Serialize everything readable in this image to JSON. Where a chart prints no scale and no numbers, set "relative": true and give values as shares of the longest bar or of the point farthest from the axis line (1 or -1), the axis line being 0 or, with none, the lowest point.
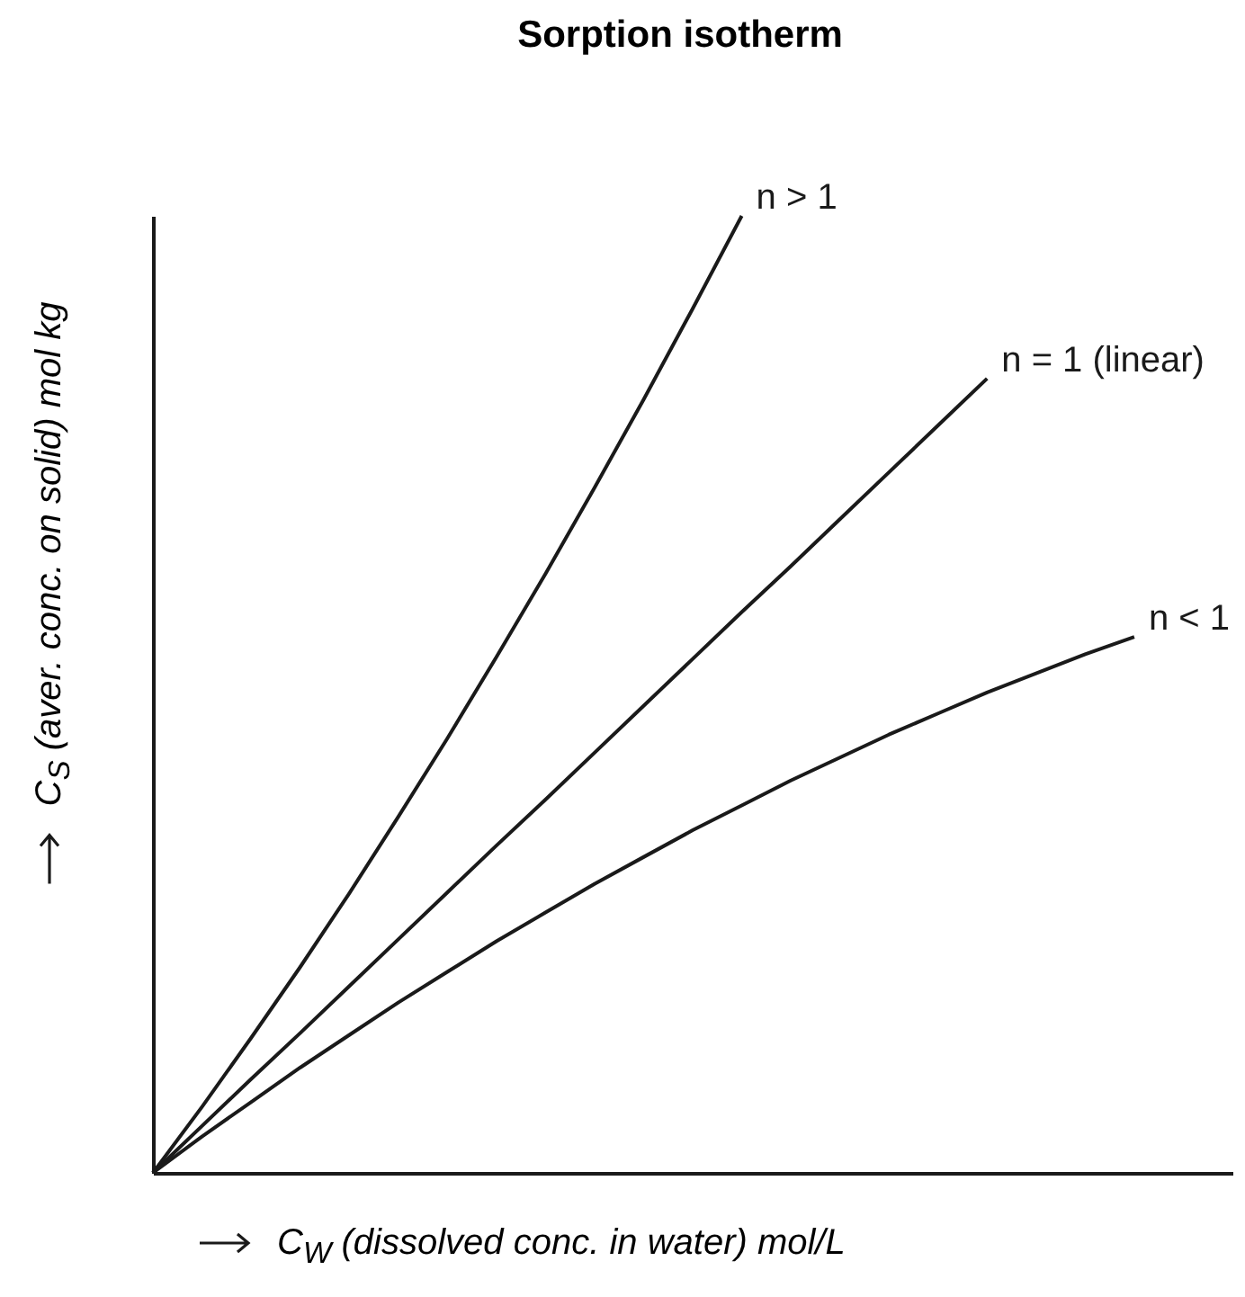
{
  "chart_data": {
    "type": "line",
    "title": "Sorption isotherm",
    "xlabel": "C$_{W}$ (dissolved conc. in water) mol/L",
    "ylabel": "C$_{S}$ (aver. conc. on solid) mol kg",
    "relative": true,
    "categories": [
      null,
      null,
      null,
      null,
      null,
      null,
      null,
      null,
      null,
      null,
      null,
      null,
      null,
      null,
      null,
      null,
      null,
      null,
      null,
      null,
      null,
      null,
      null
    ],
    "series": [
      {
        "name": "n > 1",
        "color": "#1a1a1a",
        "values": [
          0,
          0.069,
          0.141,
          0.215,
          0.292,
          0.372,
          0.454,
          0.539,
          0.626,
          0.716,
          0.808,
          0.903,
          1,
          null,
          null,
          null,
          null,
          null,
          null,
          null,
          null,
          null,
          null
        ]
      },
      {
        "name": "n = 1 (linear)",
        "color": "#1a1a1a",
        "values": [
          0,
          0.049,
          0.098,
          0.146,
          0.195,
          0.244,
          0.293,
          0.342,
          0.39,
          0.439,
          0.488,
          0.537,
          0.586,
          0.634,
          0.683,
          0.732,
          0.781,
          0.83,
          null,
          null,
          null,
          null,
          null
        ]
      },
      {
        "name": "n < 1",
        "color": "#1a1a1a",
        "values": [
          0,
          0.038,
          0.074,
          0.11,
          0.144,
          0.178,
          0.21,
          0.242,
          0.272,
          0.302,
          0.33,
          0.358,
          0.384,
          0.41,
          0.434,
          0.458,
          0.48,
          0.502,
          0.522,
          0.542,
          0.56,
          null,
          null
        ]
      }
    ]
  }
}
